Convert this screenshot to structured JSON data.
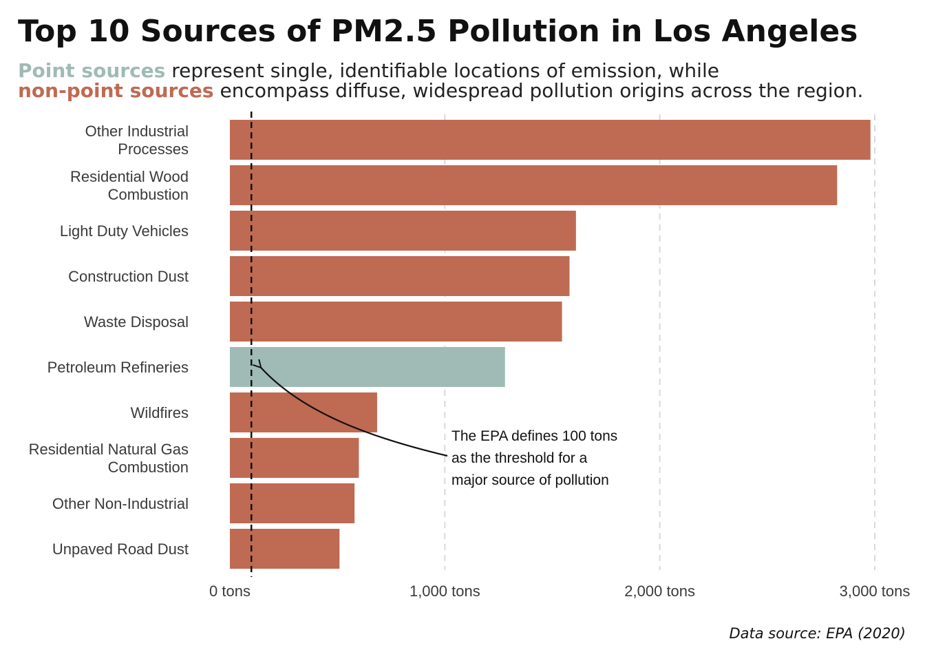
{
  "title": "Top 10 Sources of PM2.5 Pollution in Los Angeles",
  "subtitle": {
    "point_term": "Point sources",
    "line1_rest": " represent single, identifiable locations of emission, while",
    "nonpoint_term": "non-point sources",
    "line2_rest": " encompass diffuse, widespread pollution origins across the region."
  },
  "colors": {
    "point": "#a0bbb5",
    "non_point": "#bf6a52",
    "grid": "#d9d9d9",
    "threshold": "#111111"
  },
  "chart_data": {
    "type": "bar",
    "orientation": "horizontal",
    "categories": [
      {
        "label": [
          "Other Industrial",
          "Processes"
        ],
        "value": 2980,
        "source_type": "non-point"
      },
      {
        "label": [
          "Residential Wood",
          "Combustion"
        ],
        "value": 2825,
        "source_type": "non-point"
      },
      {
        "label": [
          "Light Duty Vehicles"
        ],
        "value": 1610,
        "source_type": "non-point"
      },
      {
        "label": [
          "Construction Dust"
        ],
        "value": 1580,
        "source_type": "non-point"
      },
      {
        "label": [
          "Waste Disposal"
        ],
        "value": 1545,
        "source_type": "non-point"
      },
      {
        "label": [
          "Petroleum Refineries"
        ],
        "value": 1280,
        "source_type": "point"
      },
      {
        "label": [
          "Wildfires"
        ],
        "value": 685,
        "source_type": "non-point"
      },
      {
        "label": [
          "Residential Natural Gas",
          "Combustion"
        ],
        "value": 600,
        "source_type": "non-point"
      },
      {
        "label": [
          "Other Non-Industrial"
        ],
        "value": 580,
        "source_type": "non-point"
      },
      {
        "label": [
          "Unpaved Road Dust"
        ],
        "value": 510,
        "source_type": "non-point"
      }
    ],
    "xlim": [
      0,
      3000
    ],
    "ticks": [
      {
        "value": 0,
        "label": "0 tons"
      },
      {
        "value": 1000,
        "label": "1,000 tons"
      },
      {
        "value": 2000,
        "label": "2,000 tons"
      },
      {
        "value": 3000,
        "label": "3,000 tons"
      }
    ],
    "threshold": {
      "value": 100
    },
    "annotation": {
      "lines": [
        "The EPA defines 100 tons",
        "as the threshold for a",
        "major source of pollution"
      ]
    },
    "grid": "vertical dashed"
  },
  "source_note": "Data source: EPA (2020)"
}
